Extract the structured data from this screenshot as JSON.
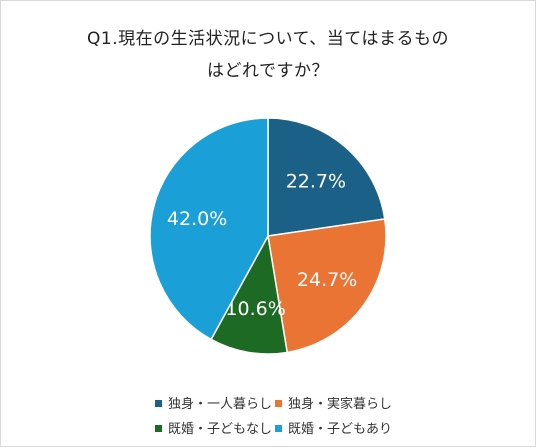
{
  "chart_data": {
    "type": "pie",
    "title_line1": "Q1.現在の生活状況について、当てはまるもの",
    "title_line2": "はどれですか？",
    "slices": [
      {
        "label": "独身・一人暮らし",
        "value": 22.7,
        "display": "22.7%",
        "color": "#1b6187"
      },
      {
        "label": "独身・実家暮らし",
        "value": 24.7,
        "display": "24.7%",
        "color": "#ea7433"
      },
      {
        "label": "既婚・子どもなし",
        "value": 10.6,
        "display": "10.6%",
        "color": "#1d6a24"
      },
      {
        "label": "既婚・子どもあり",
        "value": 42.0,
        "display": "42.0%",
        "color": "#1b9fd7"
      }
    ],
    "legend_position": "bottom"
  }
}
